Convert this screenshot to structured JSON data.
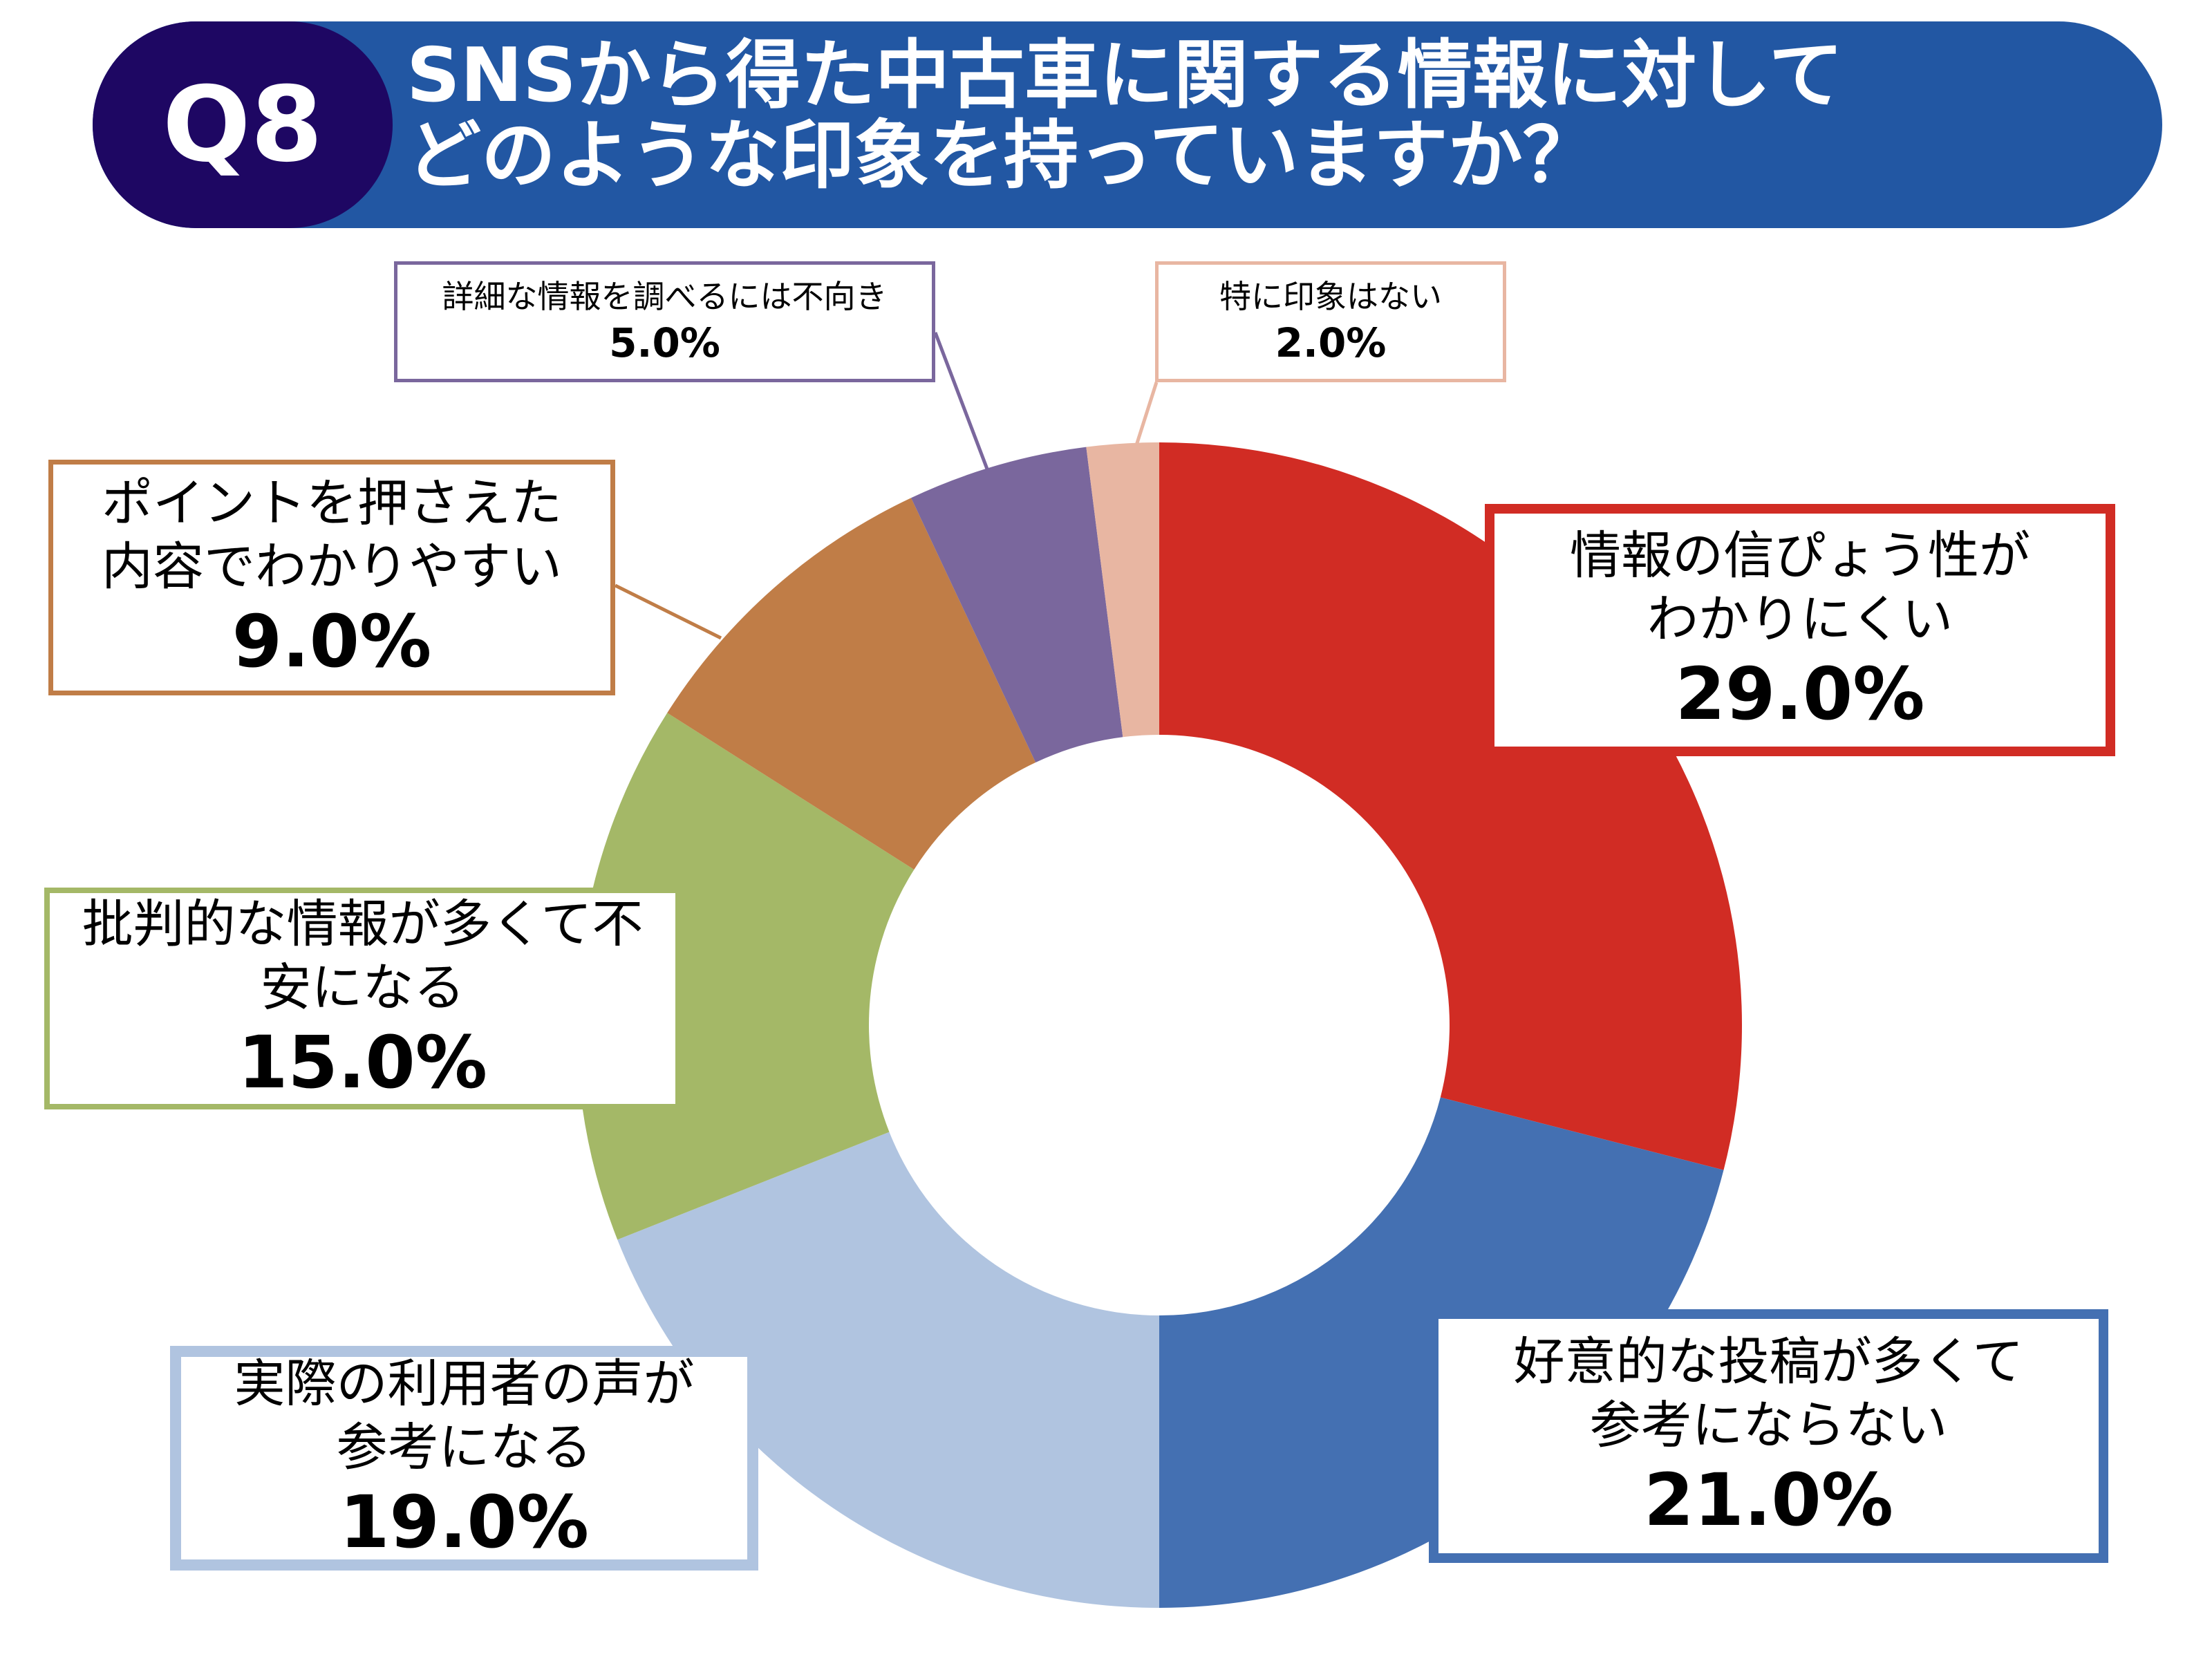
{
  "header": {
    "badge": "Q8",
    "title_lines": [
      "SNSから得た中古車に関する情報に対して",
      "どのような印象を持っていますか？"
    ],
    "header_color": "#2257A3",
    "badge_color": "#1E0763"
  },
  "chart_data": {
    "type": "pie",
    "variant": "donut",
    "start": "top, clockwise",
    "categories": [
      "情報の信ぴょう性がわかりにくい",
      "好意的な投稿が多くて参考にならない",
      "実際の利用者の声が参考になる",
      "批判的な情報が多くて不安になる",
      "ポイントを押さえた内容でわかりやすい",
      "詳細な情報を調べるには不向き",
      "特に印象はない"
    ],
    "values": [
      29.0,
      21.0,
      19.0,
      15.0,
      9.0,
      5.0,
      2.0
    ],
    "unit": "%",
    "colors": [
      "#D12C24",
      "#4470B2",
      "#B0C4E0",
      "#A4B867",
      "#C07D47",
      "#7A679D",
      "#E8B6A2"
    ],
    "labels": [
      {
        "lines": [
          "情報の信ぴょう性が",
          "わかりにくい"
        ],
        "value": "29.0%"
      },
      {
        "lines": [
          "好意的な投稿が多くて",
          "参考にならない"
        ],
        "value": "21.0%"
      },
      {
        "lines": [
          "実際の利用者の声が",
          "参考になる"
        ],
        "value": "19.0%"
      },
      {
        "lines": [
          "批判的な情報が多くて不",
          "安になる"
        ],
        "value": "15.0%"
      },
      {
        "lines": [
          "ポイントを押さえた",
          "内容でわかりやすい"
        ],
        "value": "9.0%"
      },
      {
        "lines": [
          "詳細な情報を調べるには不向き"
        ],
        "value": "5.0%"
      },
      {
        "lines": [
          "特に印象はない"
        ],
        "value": "2.0%"
      }
    ]
  }
}
